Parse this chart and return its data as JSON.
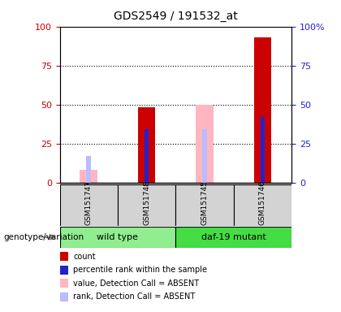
{
  "title": "GDS2549 / 191532_at",
  "samples": [
    "GSM151747",
    "GSM151748",
    "GSM151745",
    "GSM151746"
  ],
  "groups": [
    {
      "name": "wild type",
      "color": "#90ee90",
      "start": 0,
      "end": 1
    },
    {
      "name": "daf-19 mutant",
      "color": "#44dd44",
      "start": 2,
      "end": 3
    }
  ],
  "count_values": [
    0,
    48,
    0,
    93
  ],
  "percentile_rank": [
    0,
    34,
    0,
    42
  ],
  "value_absent": [
    8,
    0,
    50,
    0
  ],
  "rank_absent": [
    17,
    0,
    34,
    0
  ],
  "is_absent": [
    true,
    false,
    true,
    false
  ],
  "count_color": "#cc0000",
  "percentile_color": "#2222cc",
  "value_absent_color": "#ffb6c1",
  "rank_absent_color": "#bbbbff",
  "ylim": [
    0,
    100
  ],
  "yticks": [
    0,
    25,
    50,
    75,
    100
  ],
  "group_label": "genotype/variation",
  "legend_items": [
    {
      "label": "count",
      "color": "#cc0000"
    },
    {
      "label": "percentile rank within the sample",
      "color": "#2222cc"
    },
    {
      "label": "value, Detection Call = ABSENT",
      "color": "#ffb6c1"
    },
    {
      "label": "rank, Detection Call = ABSENT",
      "color": "#bbbbff"
    }
  ],
  "bar_width": 0.3,
  "small_bar_width": 0.08
}
